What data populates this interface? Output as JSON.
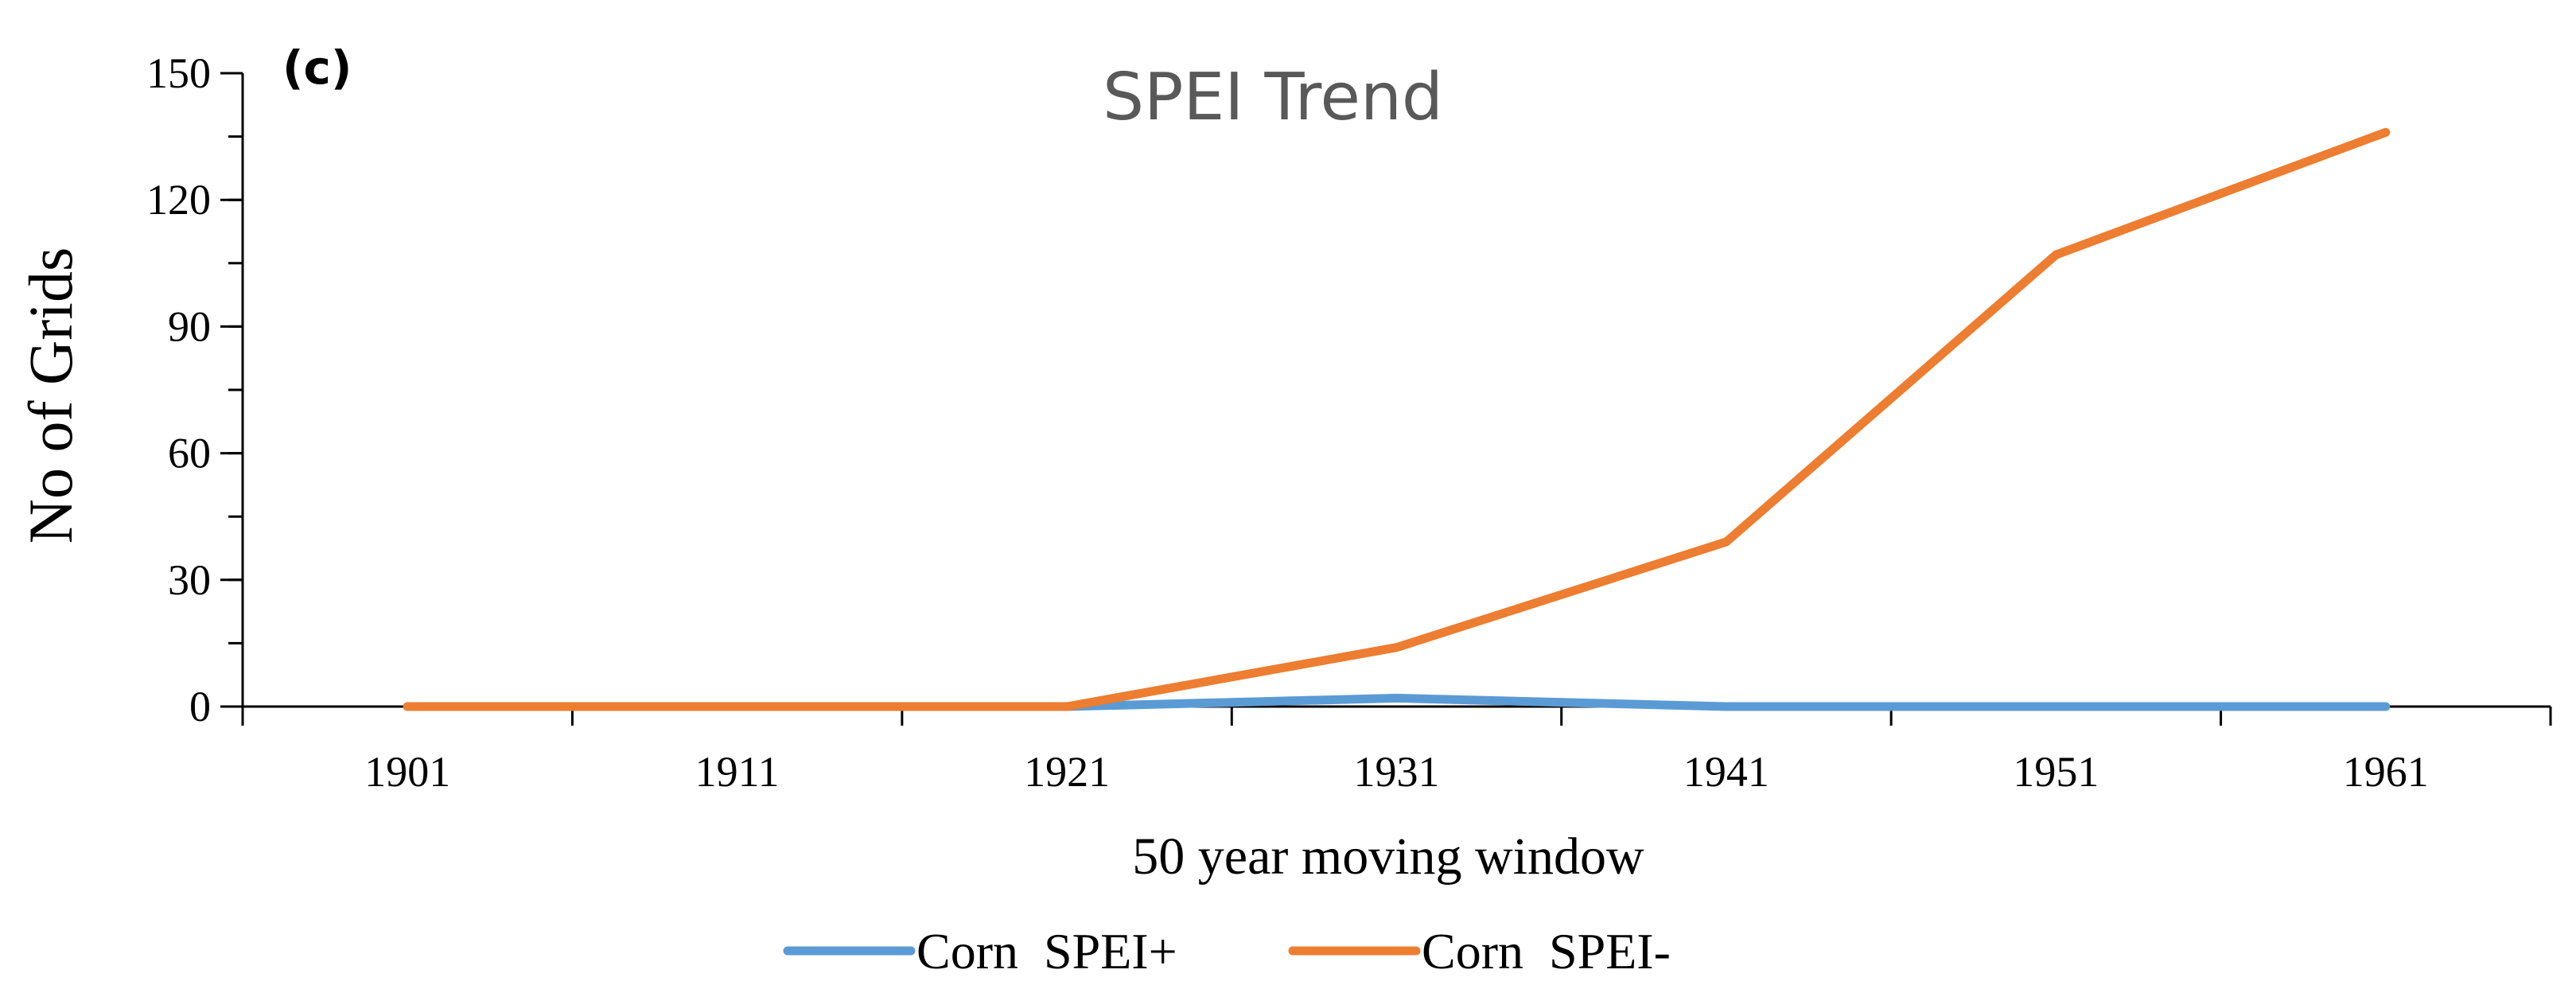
{
  "chart_data": {
    "type": "line",
    "panel_label": "(c)",
    "title": "SPEI Trend",
    "xlabel": "50 year moving window",
    "ylabel": "No of Grids",
    "categories": [
      "1901",
      "1911",
      "1921",
      "1931",
      "1941",
      "1951",
      "1961"
    ],
    "ylim": [
      0,
      150
    ],
    "yticks": [
      0,
      30,
      60,
      90,
      120,
      150
    ],
    "grid": false,
    "legend_position": "bottom",
    "series": [
      {
        "name": "Corn  SPEI+",
        "color": "#5B9BD5",
        "values": [
          0,
          0,
          0,
          2,
          0,
          0,
          0
        ]
      },
      {
        "name": "Corn  SPEI-",
        "color": "#ED7D31",
        "values": [
          0,
          0,
          0,
          14,
          39,
          107,
          136
        ]
      }
    ]
  }
}
